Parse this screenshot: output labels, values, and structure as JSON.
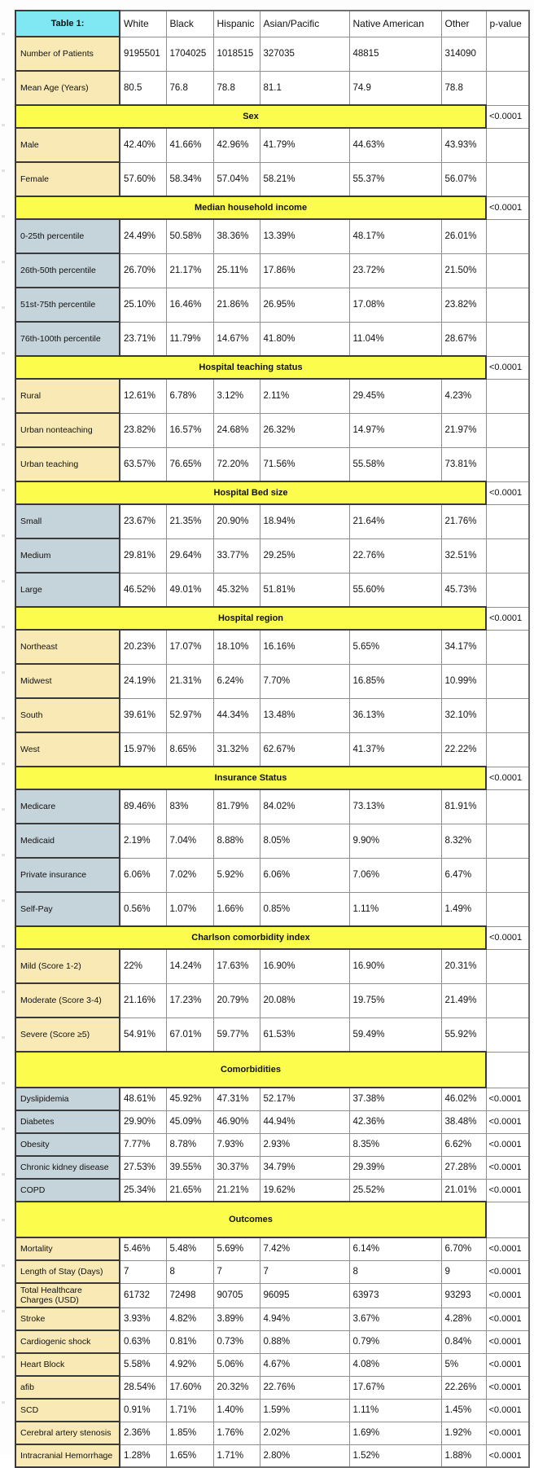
{
  "table": {
    "title_cell": "Table 1:",
    "columns": [
      "Table 1:",
      "White",
      "Black",
      "Hispanic",
      "Asian/Pacific",
      "Native American",
      "Other",
      "p-value"
    ],
    "colors": {
      "header_cyan": "#7fe8f2",
      "label_cream": "#f9eab5",
      "label_bluegray": "#c5d3da",
      "section_yellow": "#fcfc4c"
    },
    "rows": [
      {
        "type": "data",
        "label": "Number of Patients",
        "style": "cream",
        "values": [
          "9195501",
          "1704025",
          "1018515",
          "327035",
          "48815",
          "314090"
        ],
        "p": ""
      },
      {
        "type": "data",
        "label": "Mean Age (Years)",
        "style": "cream",
        "values": [
          "80.5",
          "76.8",
          "78.8",
          "81.1",
          "74.9",
          "78.8"
        ],
        "p": ""
      },
      {
        "type": "section",
        "label": "Sex",
        "p": "<0.0001"
      },
      {
        "type": "data",
        "label": "Male",
        "style": "cream",
        "values": [
          "42.40%",
          "41.66%",
          "42.96%",
          "41.79%",
          "44.63%",
          "43.93%"
        ],
        "p": ""
      },
      {
        "type": "data",
        "label": "Female",
        "style": "cream",
        "values": [
          "57.60%",
          "58.34%",
          "57.04%",
          "58.21%",
          "55.37%",
          "56.07%"
        ],
        "p": ""
      },
      {
        "type": "section",
        "label": "Median household income",
        "p": "<0.0001"
      },
      {
        "type": "data",
        "label": "0-25th percentile",
        "style": "bluegray",
        "values": [
          "24.49%",
          "50.58%",
          "38.36%",
          "13.39%",
          "48.17%",
          "26.01%"
        ],
        "p": ""
      },
      {
        "type": "data",
        "label": "26th-50th percentile",
        "style": "bluegray",
        "values": [
          "26.70%",
          "21.17%",
          "25.11%",
          "17.86%",
          "23.72%",
          "21.50%"
        ],
        "p": ""
      },
      {
        "type": "data",
        "label": "51st-75th percentile",
        "style": "bluegray",
        "values": [
          "25.10%",
          "16.46%",
          "21.86%",
          "26.95%",
          "17.08%",
          "23.82%"
        ],
        "p": ""
      },
      {
        "type": "data",
        "label": "76th-100th percentile",
        "style": "bluegray",
        "values": [
          "23.71%",
          "11.79%",
          "14.67%",
          "41.80%",
          "11.04%",
          "28.67%"
        ],
        "p": ""
      },
      {
        "type": "section",
        "label": "Hospital teaching status",
        "p": "<0.0001"
      },
      {
        "type": "data",
        "label": "Rural",
        "style": "cream",
        "values": [
          "12.61%",
          "6.78%",
          "3.12%",
          "2.11%",
          "29.45%",
          "4.23%"
        ],
        "p": ""
      },
      {
        "type": "data",
        "label": "Urban nonteaching",
        "style": "cream",
        "values": [
          "23.82%",
          "16.57%",
          "24.68%",
          "26.32%",
          "14.97%",
          "21.97%"
        ],
        "p": ""
      },
      {
        "type": "data",
        "label": "Urban teaching",
        "style": "cream",
        "values": [
          "63.57%",
          "76.65%",
          "72.20%",
          "71.56%",
          "55.58%",
          "73.81%"
        ],
        "p": ""
      },
      {
        "type": "section",
        "label": "Hospital Bed size",
        "p": "<0.0001"
      },
      {
        "type": "data",
        "label": "Small",
        "style": "bluegray",
        "values": [
          "23.67%",
          "21.35%",
          "20.90%",
          "18.94%",
          "21.64%",
          "21.76%"
        ],
        "p": ""
      },
      {
        "type": "data",
        "label": "Medium",
        "style": "bluegray",
        "values": [
          "29.81%",
          "29.64%",
          "33.77%",
          "29.25%",
          "22.76%",
          "32.51%"
        ],
        "p": ""
      },
      {
        "type": "data",
        "label": "Large",
        "style": "bluegray",
        "values": [
          "46.52%",
          "49.01%",
          "45.32%",
          "51.81%",
          "55.60%",
          "45.73%"
        ],
        "p": ""
      },
      {
        "type": "section",
        "label": "Hospital region",
        "p": "<0.0001"
      },
      {
        "type": "data",
        "label": "Northeast",
        "style": "cream",
        "values": [
          "20.23%",
          "17.07%",
          "18.10%",
          "16.16%",
          "5.65%",
          "34.17%"
        ],
        "p": ""
      },
      {
        "type": "data",
        "label": "Midwest",
        "style": "cream",
        "values": [
          "24.19%",
          "21.31%",
          "6.24%",
          "7.70%",
          "16.85%",
          "10.99%"
        ],
        "p": ""
      },
      {
        "type": "data",
        "label": "South",
        "style": "cream",
        "values": [
          "39.61%",
          "52.97%",
          "44.34%",
          "13.48%",
          "36.13%",
          "32.10%"
        ],
        "p": ""
      },
      {
        "type": "data",
        "label": "West",
        "style": "cream",
        "values": [
          "15.97%",
          "8.65%",
          "31.32%",
          "62.67%",
          "41.37%",
          "22.22%"
        ],
        "p": ""
      },
      {
        "type": "section",
        "label": "Insurance Status",
        "p": "<0.0001"
      },
      {
        "type": "data",
        "label": "Medicare",
        "style": "bluegray",
        "values": [
          "89.46%",
          "83%",
          "81.79%",
          "84.02%",
          "73.13%",
          "81.91%"
        ],
        "p": ""
      },
      {
        "type": "data",
        "label": "Medicaid",
        "style": "bluegray",
        "values": [
          "2.19%",
          "7.04%",
          "8.88%",
          "8.05%",
          "9.90%",
          "8.32%"
        ],
        "p": ""
      },
      {
        "type": "data",
        "label": "Private insurance",
        "style": "bluegray",
        "values": [
          "6.06%",
          "7.02%",
          "5.92%",
          "6.06%",
          "7.06%",
          "6.47%"
        ],
        "p": ""
      },
      {
        "type": "data",
        "label": "Self-Pay",
        "style": "bluegray",
        "values": [
          "0.56%",
          "1.07%",
          "1.66%",
          "0.85%",
          "1.11%",
          "1.49%"
        ],
        "p": ""
      },
      {
        "type": "section",
        "label": "Charlson comorbidity index",
        "p": "<0.0001"
      },
      {
        "type": "data",
        "label": "Mild (Score 1-2)",
        "style": "cream",
        "values": [
          "22%",
          "14.24%",
          "17.63%",
          "16.90%",
          "16.90%",
          "20.31%"
        ],
        "p": ""
      },
      {
        "type": "data",
        "label": "Moderate (Score 3-4)",
        "style": "cream",
        "values": [
          "21.16%",
          "17.23%",
          "20.79%",
          "20.08%",
          "19.75%",
          "21.49%"
        ],
        "p": ""
      },
      {
        "type": "data",
        "label": "Severe (Score ≥5)",
        "style": "cream",
        "values": [
          "54.91%",
          "67.01%",
          "59.77%",
          "61.53%",
          "59.49%",
          "55.92%"
        ],
        "p": ""
      },
      {
        "type": "section",
        "label": "Comorbidities",
        "p": ""
      },
      {
        "type": "data",
        "label": "Dyslipidemia",
        "style": "bluegray",
        "values": [
          "48.61%",
          "45.92%",
          "47.31%",
          "52.17%",
          "37.38%",
          "46.02%"
        ],
        "p": "<0.0001"
      },
      {
        "type": "data",
        "label": "Diabetes",
        "style": "bluegray",
        "values": [
          "29.90%",
          "45.09%",
          "46.90%",
          "44.94%",
          "42.36%",
          "38.48%"
        ],
        "p": "<0.0001"
      },
      {
        "type": "data",
        "label": "Obesity",
        "style": "bluegray",
        "values": [
          "7.77%",
          "8.78%",
          "7.93%",
          "2.93%",
          "8.35%",
          "6.62%"
        ],
        "p": "<0.0001"
      },
      {
        "type": "data",
        "label": "Chronic kidney disease",
        "style": "bluegray",
        "values": [
          "27.53%",
          "39.55%",
          "30.37%",
          "34.79%",
          "29.39%",
          "27.28%"
        ],
        "p": "<0.0001"
      },
      {
        "type": "data",
        "label": "COPD",
        "style": "bluegray",
        "values": [
          "25.34%",
          "21.65%",
          "21.21%",
          "19.62%",
          "25.52%",
          "21.01%"
        ],
        "p": "<0.0001"
      },
      {
        "type": "section",
        "label": "Outcomes",
        "p": ""
      },
      {
        "type": "data",
        "label": "Mortality",
        "style": "cream",
        "values": [
          "5.46%",
          "5.48%",
          "5.69%",
          "7.42%",
          "6.14%",
          "6.70%"
        ],
        "p": "<0.0001"
      },
      {
        "type": "data",
        "label": "Length of Stay (Days)",
        "style": "cream",
        "values": [
          "7",
          "8",
          "7",
          "7",
          "8",
          "9"
        ],
        "p": "<0.0001"
      },
      {
        "type": "data",
        "label": "Total Healthcare Charges (USD)",
        "style": "cream",
        "values": [
          "61732",
          "72498",
          "90705",
          "96095",
          "63973",
          "93293"
        ],
        "p": "<0.0001"
      },
      {
        "type": "data",
        "label": "Stroke",
        "style": "cream",
        "values": [
          "3.93%",
          "4.82%",
          "3.89%",
          "4.94%",
          "3.67%",
          "4.28%"
        ],
        "p": "<0.0001"
      },
      {
        "type": "data",
        "label": "Cardiogenic shock",
        "style": "cream",
        "values": [
          "0.63%",
          "0.81%",
          "0.73%",
          "0.88%",
          "0.79%",
          "0.84%"
        ],
        "p": "<0.0001"
      },
      {
        "type": "data",
        "label": "Heart Block",
        "style": "cream",
        "values": [
          "5.58%",
          "4.92%",
          "5.06%",
          "4.67%",
          "4.08%",
          "5%"
        ],
        "p": "<0.0001"
      },
      {
        "type": "data",
        "label": "afib",
        "style": "cream",
        "values": [
          "28.54%",
          "17.60%",
          "20.32%",
          "22.76%",
          "17.67%",
          "22.26%"
        ],
        "p": "<0.0001"
      },
      {
        "type": "data",
        "label": "SCD",
        "style": "cream",
        "values": [
          "0.91%",
          "1.71%",
          "1.40%",
          "1.59%",
          "1.11%",
          "1.45%"
        ],
        "p": "<0.0001"
      },
      {
        "type": "data",
        "label": "Cerebral artery stenosis",
        "style": "cream",
        "values": [
          "2.36%",
          "1.85%",
          "1.76%",
          "2.02%",
          "1.69%",
          "1.92%"
        ],
        "p": "<0.0001"
      },
      {
        "type": "data",
        "label": "Intracranial Hemorrhage",
        "style": "cream",
        "values": [
          "1.28%",
          "1.65%",
          "1.71%",
          "2.80%",
          "1.52%",
          "1.88%"
        ],
        "p": "<0.0001"
      }
    ]
  }
}
